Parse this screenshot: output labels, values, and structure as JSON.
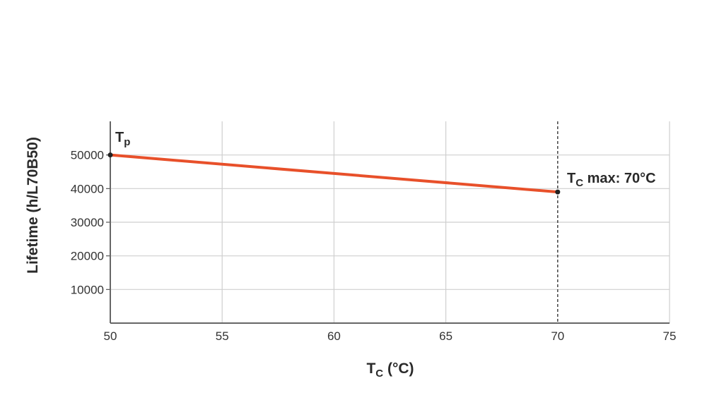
{
  "chart_data": {
    "type": "line",
    "xlabel_main": "T",
    "xlabel_sub": "C",
    "xlabel_rest": " (°C)",
    "ylabel": "Lifetime (h/L70B50)",
    "xlim": [
      50,
      75
    ],
    "ylim": [
      0,
      60000
    ],
    "xticks": [
      50,
      55,
      60,
      65,
      70,
      75
    ],
    "yticks": [
      10000,
      20000,
      30000,
      40000,
      50000
    ],
    "xtick_labels": [
      "50",
      "55",
      "60",
      "65",
      "70",
      "75"
    ],
    "ytick_labels": [
      "10000",
      "20000",
      "30000",
      "40000",
      "50000"
    ],
    "grid": true,
    "series": [
      {
        "x": [
          50,
          70
        ],
        "y": [
          50000,
          39000
        ],
        "color": "#e8502a"
      }
    ],
    "annotations": {
      "tp": {
        "main": "T",
        "sub": "p",
        "x": 50,
        "y": 50000
      },
      "tcmax": {
        "main": "T",
        "sub": "C",
        "rest": " max: 70°C",
        "x": 70,
        "y": 39000
      }
    },
    "vline": {
      "x": 70,
      "style": "dashed"
    }
  }
}
